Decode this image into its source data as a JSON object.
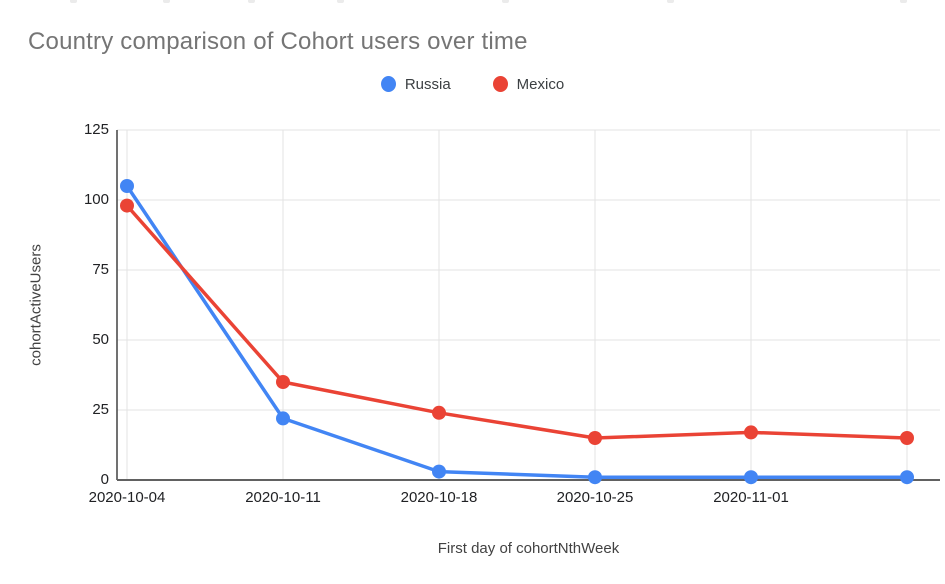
{
  "chart_data": {
    "type": "line",
    "title": "Country comparison of Cohort users over time",
    "xlabel": "First day of cohortNthWeek",
    "ylabel": "cohortActiveUsers",
    "categories": [
      "2020-10-04",
      "2020-10-11",
      "2020-10-18",
      "2020-10-25",
      "2020-11-01",
      ""
    ],
    "x_tick_labels": [
      "2020-10-04",
      "2020-10-11",
      "2020-10-18",
      "2020-10-25",
      "2020-11-01"
    ],
    "series": [
      {
        "name": "Russia",
        "color": "#4285F4",
        "values": [
          105,
          22,
          3,
          1,
          1,
          1
        ]
      },
      {
        "name": "Mexico",
        "color": "#EA4335",
        "values": [
          98,
          35,
          24,
          15,
          17,
          15
        ]
      }
    ],
    "y_ticks": [
      0,
      25,
      50,
      75,
      100,
      125
    ],
    "ylim": [
      0,
      125
    ],
    "grid": true,
    "legend_position": "top",
    "colors": {
      "title_text": "#757575",
      "tick_text": "#202124",
      "axis_title_text": "#424242",
      "gridline": "#e3e3e3",
      "y_axis_line": "#424242",
      "x_axis_line": "#616161",
      "background": "#ffffff"
    }
  }
}
